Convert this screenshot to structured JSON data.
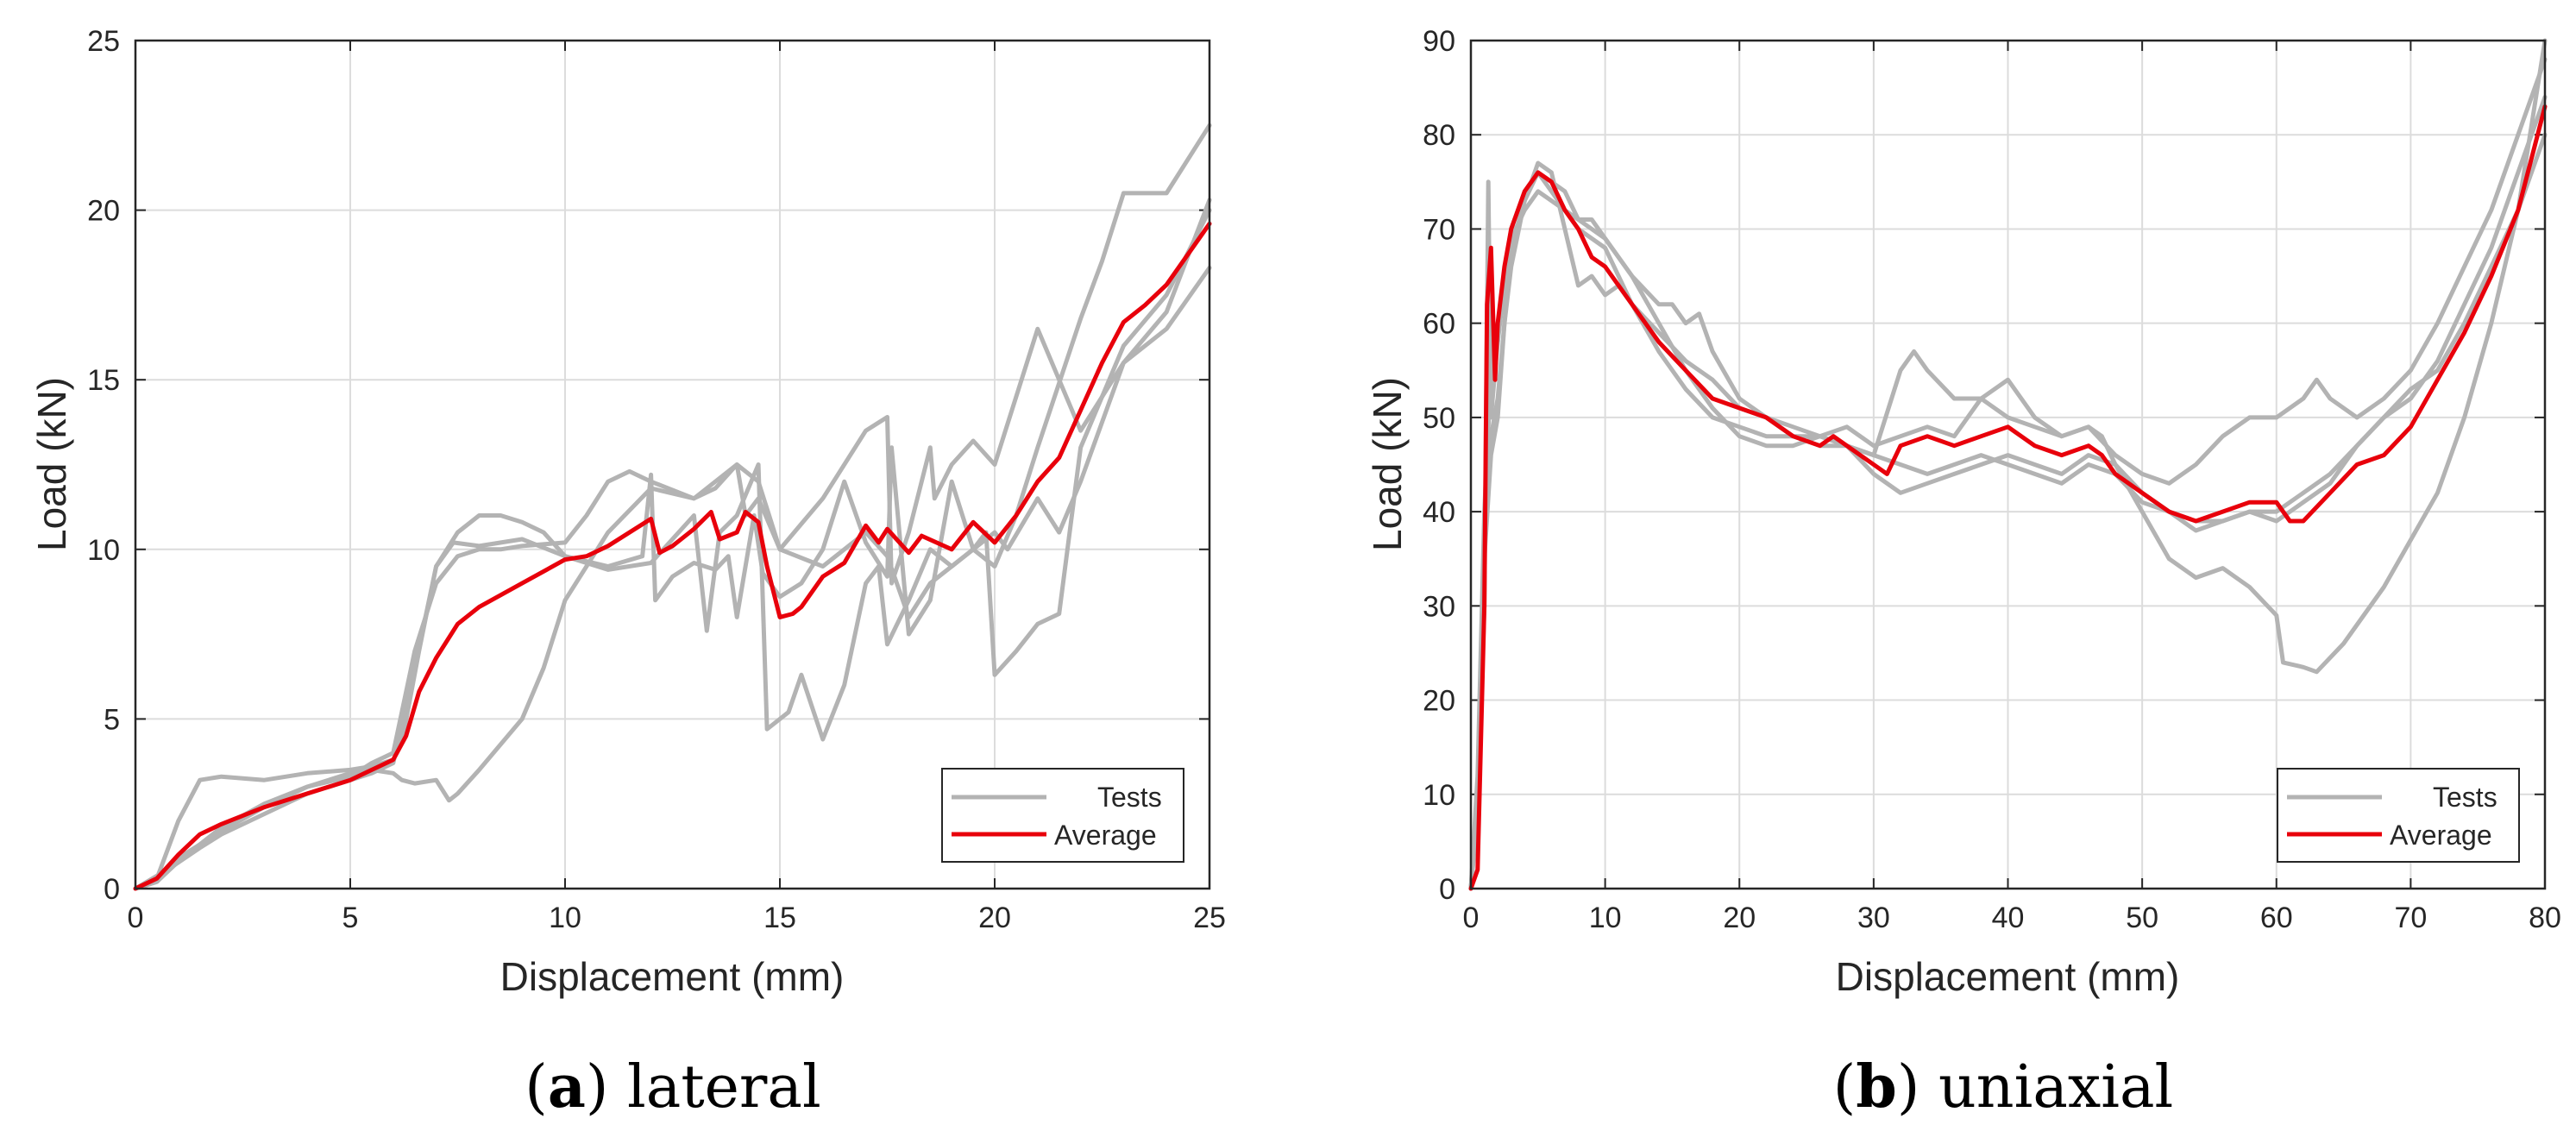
{
  "chart_data": [
    {
      "type": "line",
      "caption_letter": "a",
      "caption_text": "lateral",
      "xlabel": "Displacement (mm)",
      "ylabel": "Load (kN)",
      "xlim": [
        0,
        25
      ],
      "ylim": [
        0,
        25
      ],
      "xticks": [
        "0",
        "5",
        "10",
        "15",
        "20",
        "25"
      ],
      "yticks": [
        "0",
        "5",
        "10",
        "15",
        "20",
        "25"
      ],
      "grid": true,
      "legend_position": "bottom-right",
      "legend": [
        "Tests",
        "Average"
      ],
      "colors": {
        "tests": "#b3b3b3",
        "average": "#e8000b"
      },
      "series": [
        {
          "name": "Tests",
          "x": [
            0,
            0.5,
            1,
            1.5,
            2,
            3,
            4,
            5,
            5.5,
            6,
            6.2,
            6.6,
            7,
            7.4,
            8,
            9,
            10,
            11,
            11.8,
            12,
            12.1,
            12.5,
            13,
            13.5,
            13.8,
            14,
            14.4,
            14.6,
            15,
            15.5,
            16,
            16.5,
            17,
            17.5,
            17.6,
            18,
            18.5,
            19,
            19.5,
            20,
            20.5,
            21,
            22,
            22.5,
            23,
            24,
            25
          ],
          "y": [
            0,
            0.3,
            2.0,
            3.2,
            3.3,
            3.2,
            3.4,
            3.5,
            3.6,
            3.8,
            4.3,
            7.0,
            9.5,
            10.2,
            10.1,
            10.3,
            9.8,
            9.5,
            9.8,
            12.2,
            8.5,
            9.2,
            9.6,
            9.4,
            9.8,
            8.0,
            11.0,
            9.3,
            8.6,
            9.0,
            10.0,
            12.0,
            10.2,
            9.2,
            13.0,
            7.5,
            8.5,
            12.0,
            10.0,
            9.5,
            11.0,
            13.0,
            16.8,
            18.5,
            20.5,
            20.5,
            22.5
          ]
        },
        {
          "name": "Tests",
          "x": [
            0,
            0.8,
            1.5,
            2,
            3,
            4,
            5,
            5.5,
            6,
            6.5,
            7,
            7.5,
            8,
            8.5,
            9,
            9.5,
            10,
            11,
            12,
            13,
            13.3,
            13.6,
            14,
            14.5,
            14.7,
            15,
            15.2,
            15.5,
            16,
            16.5,
            17,
            17.3,
            17.5,
            18,
            18.5,
            19,
            20,
            20.3,
            21,
            21.5,
            22,
            23,
            24,
            25
          ],
          "y": [
            0,
            0.6,
            1.2,
            1.6,
            2.2,
            2.8,
            3.2,
            3.4,
            3.7,
            6.5,
            9.5,
            10.5,
            11.0,
            11.0,
            10.8,
            10.5,
            9.8,
            9.4,
            9.6,
            11.0,
            7.6,
            10.5,
            11.0,
            12.5,
            4.7,
            5.0,
            5.2,
            6.3,
            4.4,
            6.0,
            9.0,
            9.5,
            7.2,
            8.5,
            10.0,
            9.5,
            10.5,
            10.0,
            11.5,
            10.5,
            12.0,
            15.5,
            17.0,
            20.3
          ]
        },
        {
          "name": "Tests",
          "x": [
            0,
            0.5,
            1,
            2,
            3,
            4,
            5,
            5.5,
            6,
            6.2,
            6.5,
            7,
            7.3,
            7.5,
            8,
            9,
            9.5,
            10,
            11,
            12,
            13,
            13.5,
            14,
            14.2,
            14.5,
            15,
            16,
            17,
            17.5,
            17.6,
            18,
            18.5,
            18.6,
            19,
            19.5,
            20,
            20.5,
            21,
            21.5,
            22,
            22.5,
            23,
            24,
            25
          ],
          "y": [
            0,
            0.2,
            0.8,
            1.8,
            2.5,
            3.0,
            3.4,
            3.5,
            3.4,
            3.2,
            3.1,
            3.2,
            2.6,
            2.8,
            3.5,
            5.0,
            6.5,
            8.5,
            10.5,
            11.8,
            11.5,
            11.8,
            12.5,
            11.0,
            11.5,
            10.0,
            11.5,
            13.5,
            13.9,
            9.0,
            10.5,
            13.0,
            11.5,
            12.5,
            13.2,
            12.5,
            14.5,
            16.5,
            15.0,
            13.5,
            14.5,
            15.5,
            16.5,
            18.3
          ]
        },
        {
          "name": "Tests",
          "x": [
            0,
            0.5,
            1,
            2,
            3,
            4,
            5,
            5.5,
            6,
            6.5,
            7,
            7.5,
            8,
            8.5,
            9,
            10,
            10.5,
            11,
            11.5,
            12,
            13,
            14,
            14.5,
            15,
            16,
            17,
            17.5,
            18,
            18.5,
            19,
            19.5,
            19.8,
            20,
            20.5,
            21,
            21.5,
            22,
            23,
            24,
            25
          ],
          "y": [
            0,
            0.2,
            0.9,
            1.7,
            2.4,
            3.0,
            3.3,
            3.7,
            4.0,
            7.0,
            9.0,
            9.8,
            10.0,
            10.0,
            10.1,
            10.2,
            11.0,
            12.0,
            12.3,
            12.0,
            11.5,
            12.5,
            12.0,
            10.0,
            9.5,
            10.5,
            9.8,
            8.0,
            9.0,
            9.5,
            10.0,
            10.5,
            6.3,
            7.0,
            7.8,
            8.1,
            13.0,
            16.0,
            17.5,
            20.0
          ]
        },
        {
          "name": "Average",
          "x": [
            0,
            0.5,
            1,
            1.5,
            2,
            3,
            4,
            5,
            5.5,
            6,
            6.3,
            6.6,
            7,
            7.5,
            8,
            9,
            10,
            10.5,
            11,
            11.5,
            12,
            12.2,
            12.5,
            13,
            13.4,
            13.6,
            14,
            14.2,
            14.5,
            14.7,
            15,
            15.3,
            15.5,
            16,
            16.5,
            17,
            17.3,
            17.5,
            18,
            18.3,
            19,
            19.5,
            20,
            20.5,
            21,
            21.5,
            22,
            22.5,
            23,
            23.5,
            24,
            25
          ],
          "y": [
            0,
            0.3,
            1.0,
            1.6,
            1.9,
            2.4,
            2.8,
            3.2,
            3.5,
            3.8,
            4.5,
            5.8,
            6.8,
            7.8,
            8.3,
            9.0,
            9.7,
            9.8,
            10.1,
            10.5,
            10.9,
            9.9,
            10.1,
            10.6,
            11.1,
            10.3,
            10.5,
            11.1,
            10.8,
            9.5,
            8.0,
            8.1,
            8.3,
            9.2,
            9.6,
            10.7,
            10.2,
            10.6,
            9.9,
            10.4,
            10.0,
            10.8,
            10.2,
            11.0,
            12.0,
            12.7,
            14.1,
            15.5,
            16.7,
            17.2,
            17.8,
            19.6
          ]
        }
      ]
    },
    {
      "type": "line",
      "caption_letter": "b",
      "caption_text": "uniaxial",
      "xlabel": "Displacement (mm)",
      "ylabel": "Load (kN)",
      "xlim": [
        0,
        80
      ],
      "ylim": [
        0,
        90
      ],
      "xticks": [
        "0",
        "10",
        "20",
        "30",
        "40",
        "50",
        "60",
        "70",
        "80"
      ],
      "yticks": [
        "0",
        "10",
        "20",
        "30",
        "40",
        "50",
        "60",
        "70",
        "80",
        "90"
      ],
      "grid": true,
      "legend_position": "bottom-right",
      "legend": [
        "Tests",
        "Average"
      ],
      "colors": {
        "tests": "#b3b3b3",
        "average": "#e8000b"
      },
      "series": [
        {
          "name": "Tests",
          "x": [
            0,
            0.5,
            1,
            1.3,
            1.5,
            1.8,
            2,
            2.5,
            3,
            4,
            5,
            6,
            7,
            8,
            9,
            10,
            12,
            14,
            15,
            16,
            17,
            18,
            20,
            22,
            24,
            26,
            28,
            30,
            32,
            33,
            34,
            36,
            38,
            40,
            42,
            44,
            46,
            47,
            48,
            50,
            52,
            54,
            56,
            58,
            60,
            60.5,
            62,
            63,
            65,
            68,
            70,
            72,
            74,
            76,
            78,
            80
          ],
          "y": [
            0,
            8,
            30,
            75,
            50,
            55,
            58,
            65,
            70,
            74,
            76,
            75,
            74,
            71,
            71,
            69,
            65,
            62,
            62,
            60,
            61,
            57,
            52,
            50,
            48,
            47,
            47,
            46,
            55,
            57,
            55,
            52,
            52,
            50,
            49,
            48,
            49,
            48,
            45,
            40,
            35,
            33,
            34,
            32,
            29,
            24,
            23.5,
            23,
            26,
            32,
            37,
            42,
            50,
            60,
            72,
            90
          ]
        },
        {
          "name": "Tests",
          "x": [
            0,
            0.5,
            1,
            1.5,
            2,
            2.5,
            3,
            4,
            5,
            6,
            7,
            8,
            9,
            10,
            11,
            12,
            14,
            16,
            18,
            20,
            22,
            24,
            26,
            28,
            30,
            32,
            34,
            36,
            38,
            40,
            42,
            44,
            46,
            48,
            50,
            52,
            54,
            56,
            58,
            60,
            62,
            63,
            64,
            66,
            68,
            70,
            72,
            74,
            76,
            78,
            80
          ],
          "y": [
            0,
            10,
            38,
            48,
            52,
            60,
            66,
            73,
            77,
            76,
            70,
            64,
            65,
            63,
            64,
            62,
            59,
            56,
            54,
            51,
            50,
            49,
            48,
            49,
            47,
            48,
            49,
            48,
            52,
            54,
            50,
            48,
            49,
            46,
            44,
            43,
            45,
            48,
            50,
            50,
            52,
            54,
            52,
            50,
            52,
            55,
            60,
            66,
            72,
            80,
            88
          ]
        },
        {
          "name": "Tests",
          "x": [
            0,
            0.5,
            1,
            1.5,
            2,
            2.5,
            3,
            4,
            5,
            6,
            7,
            8,
            10,
            12,
            14,
            16,
            18,
            20,
            22,
            24,
            26,
            28,
            30,
            32,
            34,
            36,
            38,
            40,
            42,
            44,
            46,
            48,
            50,
            52,
            54,
            56,
            58,
            60,
            62,
            64,
            66,
            68,
            70,
            72,
            74,
            76,
            78,
            80
          ],
          "y": [
            0,
            9,
            35,
            46,
            50,
            60,
            68,
            73,
            76,
            74,
            72,
            71,
            69,
            65,
            60,
            55,
            51,
            48,
            47,
            47,
            48,
            47,
            46,
            45,
            44,
            45,
            46,
            45,
            44,
            43,
            45,
            44,
            41,
            40,
            39,
            39,
            40,
            40,
            42,
            44,
            47,
            50,
            52,
            56,
            62,
            68,
            76,
            84
          ]
        },
        {
          "name": "Tests",
          "x": [
            0,
            0.5,
            1,
            1.5,
            2,
            2.5,
            3,
            4,
            5,
            6,
            7,
            8,
            10,
            12,
            14,
            16,
            18,
            20,
            22,
            24,
            26,
            28,
            30,
            32,
            34,
            36,
            38,
            40,
            42,
            44,
            46,
            48,
            50,
            52,
            54,
            56,
            58,
            60,
            62,
            64,
            66,
            68,
            70,
            72,
            74,
            76,
            78,
            80
          ],
          "y": [
            0,
            12,
            40,
            55,
            58,
            64,
            69,
            72,
            74,
            73,
            72,
            70,
            68,
            62,
            57,
            53,
            50,
            49,
            48,
            48,
            48,
            47,
            44,
            42,
            43,
            44,
            45,
            46,
            45,
            44,
            46,
            45,
            42,
            40,
            38,
            39,
            40,
            39,
            41,
            43,
            47,
            50,
            53,
            55,
            60,
            66,
            72,
            80
          ]
        },
        {
          "name": "Average",
          "x": [
            0,
            0.5,
            1,
            1.2,
            1.5,
            1.8,
            2,
            2.5,
            3,
            4,
            5,
            6,
            7,
            8,
            9,
            10,
            12,
            14,
            16,
            18,
            20,
            22,
            24,
            26,
            27,
            28,
            30,
            31,
            32,
            34,
            36,
            38,
            40,
            42,
            44,
            46,
            47,
            48,
            50,
            52,
            54,
            56,
            58,
            60,
            61,
            62,
            64,
            66,
            68,
            70,
            72,
            74,
            76,
            78,
            80
          ],
          "y": [
            0,
            2,
            30,
            62,
            68,
            54,
            60,
            66,
            70,
            74,
            76,
            75,
            72,
            70,
            67,
            66,
            62,
            58,
            55,
            52,
            51,
            50,
            48,
            47,
            48,
            47,
            45,
            44,
            47,
            48,
            47,
            48,
            49,
            47,
            46,
            47,
            46,
            44,
            42,
            40,
            39,
            40,
            41,
            41,
            39,
            39,
            42,
            45,
            46,
            49,
            54,
            59,
            65,
            72,
            83
          ]
        }
      ]
    }
  ]
}
